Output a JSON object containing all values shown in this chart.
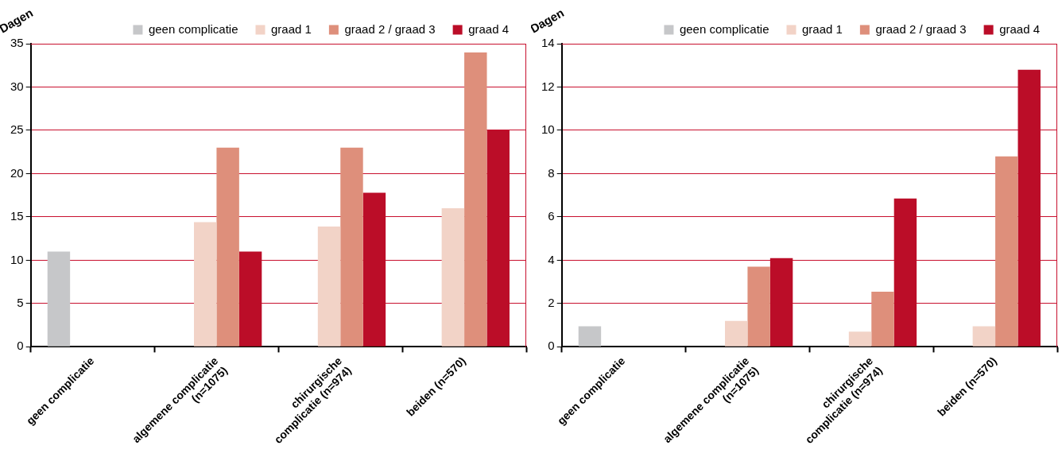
{
  "chart_data": [
    {
      "type": "bar",
      "ylabel": "Dagen",
      "categories": [
        "geen complicatie",
        "algemene complicatie (n=1075)",
        "chirurgische complicatie (n=974)",
        "beiden (n=570)"
      ],
      "series": [
        {
          "name": "geen complicatie",
          "color": "#c6c7c9",
          "values": [
            11,
            null,
            null,
            null
          ]
        },
        {
          "name": "graad 1",
          "color": "#f2d3c7",
          "values": [
            null,
            14.4,
            13.9,
            16
          ]
        },
        {
          "name": "graad 2 / graad 3",
          "color": "#de8f7b",
          "values": [
            null,
            23,
            23,
            34
          ]
        },
        {
          "name": "graad 4",
          "color": "#bb0d28",
          "values": [
            null,
            11,
            17.8,
            25
          ]
        }
      ],
      "ylim": [
        0,
        35
      ],
      "yticks": [
        0,
        5,
        10,
        15,
        20,
        25,
        30,
        35
      ],
      "grid": "y",
      "legend": "top"
    },
    {
      "type": "bar",
      "ylabel": "Dagen",
      "categories": [
        "geen complicatie",
        "algemene complicatie (n=1075)",
        "chirurgische complicatie (n=974)",
        "beiden (n=570)"
      ],
      "series": [
        {
          "name": "geen complicatie",
          "color": "#c6c7c9",
          "values": [
            0.95,
            null,
            null,
            null
          ]
        },
        {
          "name": "graad 1",
          "color": "#f2d3c7",
          "values": [
            null,
            1.2,
            0.7,
            0.95
          ]
        },
        {
          "name": "graad 2 / graad 3",
          "color": "#de8f7b",
          "values": [
            null,
            3.7,
            2.55,
            8.8
          ]
        },
        {
          "name": "graad 4",
          "color": "#bb0d28",
          "values": [
            null,
            4.1,
            6.85,
            12.8
          ]
        }
      ],
      "ylim": [
        0,
        14
      ],
      "yticks": [
        0,
        2,
        4,
        6,
        8,
        10,
        12,
        14
      ],
      "grid": "y",
      "legend": "top"
    }
  ]
}
